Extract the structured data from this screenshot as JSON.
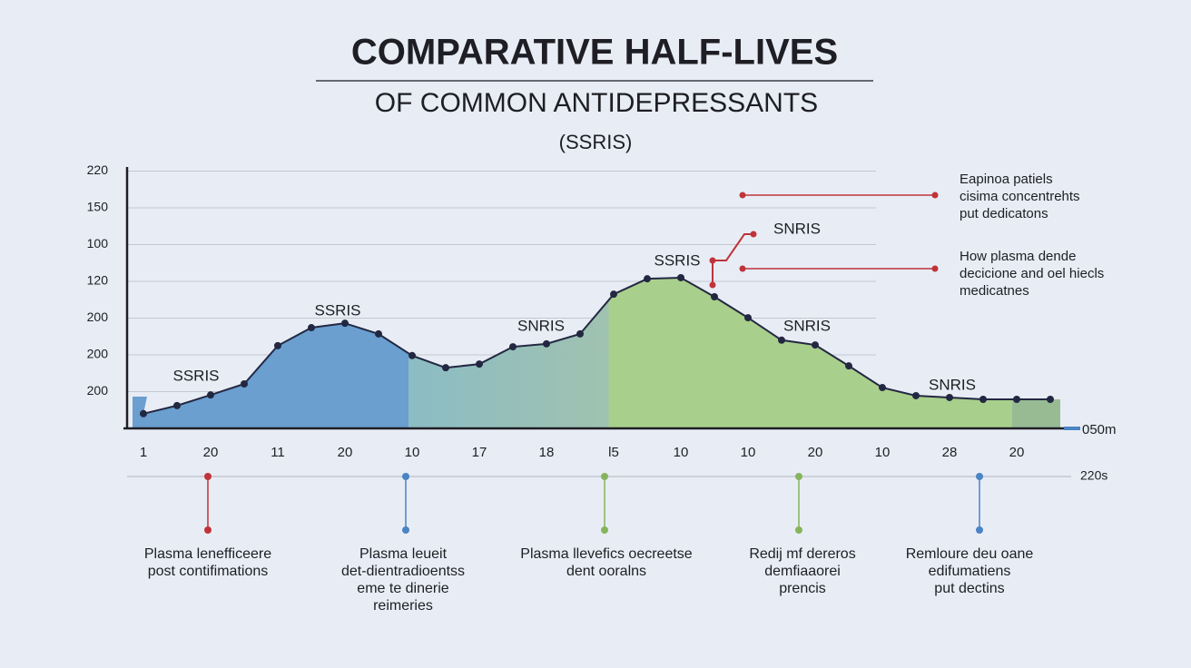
{
  "chart_data": {
    "type": "line",
    "title": "COMPARATIVE HALF-LIVES",
    "subtitle": "OF COMMON ANTIDEPRESSANTS",
    "subtitle2": "(SSRIS)",
    "categories": [
      "1",
      null,
      "20",
      null,
      "11",
      null,
      "20",
      null,
      "10",
      null,
      "17",
      null,
      "18",
      null,
      "l5",
      null,
      "10",
      null,
      "10",
      null,
      "20",
      null,
      "10",
      null,
      "28",
      null,
      "20",
      null
    ],
    "values": [
      0.4,
      0.62,
      0.91,
      1.21,
      2.25,
      2.74,
      2.86,
      2.57,
      1.98,
      1.65,
      1.75,
      2.22,
      2.3,
      2.57,
      3.65,
      4.07,
      4.1,
      3.58,
      3.01,
      2.4,
      2.27,
      1.7,
      1.11,
      0.89,
      0.84,
      0.79,
      0.79,
      0.79
    ],
    "color": "#232842",
    "ylim": [
      0,
      7
    ],
    "yticks": [
      {
        "value": 1,
        "label": "200"
      },
      {
        "value": 2,
        "label": "200"
      },
      {
        "value": 3,
        "label": "200"
      },
      {
        "value": 4,
        "label": "120"
      },
      {
        "value": 5,
        "label": "100"
      },
      {
        "value": 6,
        "label": "150"
      },
      {
        "value": 7,
        "label": "220"
      }
    ],
    "grid": true,
    "annotations": [
      {
        "text": "SSRIS",
        "color": "#4a78c0"
      },
      {
        "text": "SSRIS",
        "color": "#4a78c0"
      },
      {
        "text": "SNRIS",
        "color": "#4a78c0"
      },
      {
        "text": "SSRIS",
        "color": "#86b45c"
      },
      {
        "text": "SNRIS",
        "color": "#86b45c"
      },
      {
        "text": "SNRIS",
        "color": "#c0333a"
      },
      {
        "text": "SNRIS",
        "color": "#c0333a"
      }
    ],
    "right_notes": [
      [
        "Eapinoa patiels",
        "cisima concentrehts",
        "put dedicatons"
      ],
      [
        "How plasma dende",
        "decicione and oel hiecls",
        "medicatnes"
      ]
    ],
    "axis_end_labels": [
      "050m",
      "220s"
    ]
  },
  "callouts": [
    {
      "color": "#c0333a",
      "lines": [
        {
          "text": "Plasma lenefficeere",
          "color": "#1e1e24"
        },
        {
          "text": "post contifimations",
          "color": "#c0333a"
        }
      ]
    },
    {
      "color": "#4a84c4",
      "lines": [
        {
          "text": "Plasma leueit",
          "color": "#1e1e24"
        },
        {
          "text": "det-dientradioentss",
          "color": "#1e1e24"
        },
        {
          "text": "eme te dinerie",
          "color": "#1e1e24"
        },
        {
          "text": "reimeries",
          "color": "#1e1e24"
        }
      ]
    },
    {
      "color": "#86b45c",
      "lines": [
        {
          "text": "Plasma llevefics oecreetse",
          "color": "#1e1e24"
        },
        {
          "text": "dent ooralns",
          "color": "#1e1e24"
        }
      ]
    },
    {
      "color": "#86b45c",
      "lines": [
        {
          "text": "Redij mf dereros",
          "color": "#1e1e24"
        },
        {
          "text": "demfiaaorei",
          "color": "#1e1e24"
        },
        {
          "text": "prencis",
          "color": "#1e1e24"
        }
      ]
    },
    {
      "color": "#4a84c4",
      "lines": [
        {
          "text": "Remloure deu oane",
          "color": "#6a6e78"
        },
        {
          "text": "edifumatiens",
          "color": "#6a6e78"
        },
        {
          "text": "put dectins",
          "color": "#6a6e78"
        }
      ]
    }
  ]
}
